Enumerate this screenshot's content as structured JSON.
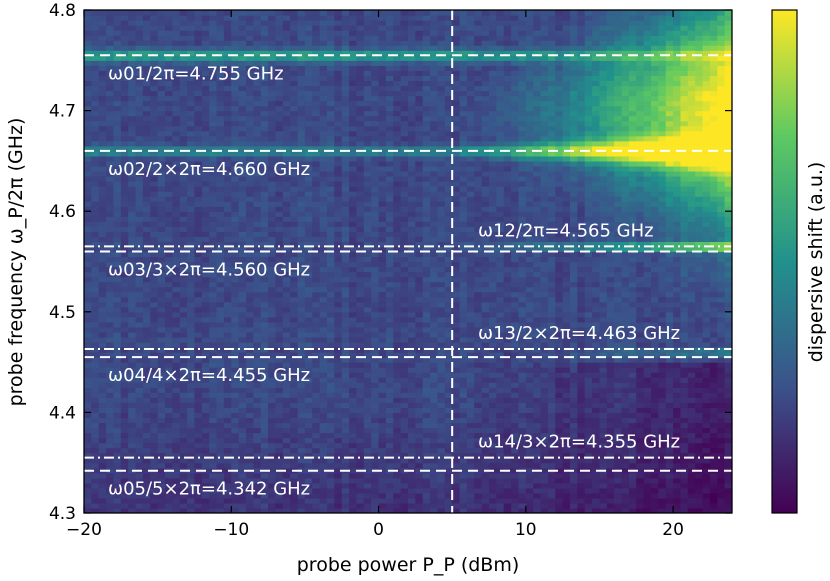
{
  "chart_data": {
    "type": "heatmap",
    "xlabel": "probe power P_P (dBm)",
    "ylabel": "probe frequency ω_P/2π (GHz)",
    "colorbar_label": "dispersive shift (a.u.)",
    "xlim": [
      -20,
      24
    ],
    "ylim": [
      4.3,
      4.8
    ],
    "xticks": [
      -20,
      -10,
      0,
      10,
      20
    ],
    "xtick_labels": [
      "−20",
      "−10",
      "0",
      "10",
      "20"
    ],
    "yticks": [
      4.3,
      4.4,
      4.5,
      4.6,
      4.7,
      4.8
    ],
    "ytick_labels": [
      "4.3",
      "4.4",
      "4.5",
      "4.6",
      "4.7",
      "4.8"
    ],
    "colormap": [
      "#440154",
      "#3b528b",
      "#21918c",
      "#5ec962",
      "#fde725"
    ],
    "vertical_line": {
      "x": 5,
      "style": "dashed"
    },
    "horizontal_lines": [
      {
        "y": 4.755,
        "style": "dashed",
        "label": "ω01/2π=4.755 GHz",
        "label_side": "left"
      },
      {
        "y": 4.66,
        "style": "dashed",
        "label": "ω02/2×2π=4.660 GHz",
        "label_side": "left"
      },
      {
        "y": 4.565,
        "style": "dashdot",
        "label": "ω12/2π=4.565 GHz",
        "label_side": "right"
      },
      {
        "y": 4.56,
        "style": "dashed",
        "label": "ω03/3×2π=4.560 GHz",
        "label_side": "left"
      },
      {
        "y": 4.463,
        "style": "dashdot",
        "label": "ω13/2×2π=4.463 GHz",
        "label_side": "right"
      },
      {
        "y": 4.455,
        "style": "dashed",
        "label": "ω04/4×2π=4.455 GHz",
        "label_side": "left"
      },
      {
        "y": 4.355,
        "style": "dashdot",
        "label": "ω14/3×2π=4.355 GHz",
        "label_side": "right"
      },
      {
        "y": 4.342,
        "style": "dashed",
        "label": "ω05/5×2π=4.342 GHz",
        "label_side": "left"
      }
    ]
  }
}
